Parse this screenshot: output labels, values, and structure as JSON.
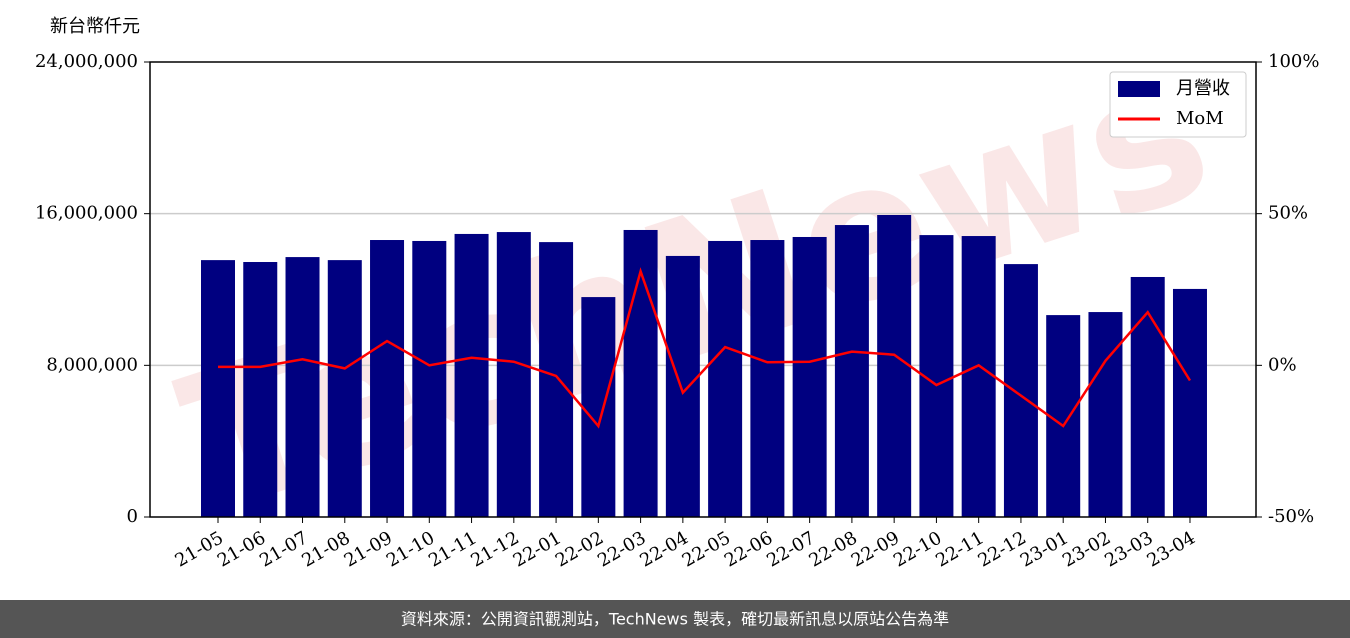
{
  "chart_data": {
    "type": "bar-line",
    "y_label": "新台幣仟元",
    "watermark": "TechNews",
    "source": "資料來源：公開資訊觀測站，TechNews 製表，確切最新訊息以原站公告為準",
    "categories": [
      "21-05",
      "21-06",
      "21-07",
      "21-08",
      "21-09",
      "21-10",
      "21-11",
      "21-12",
      "22-01",
      "22-02",
      "22-03",
      "22-04",
      "22-05",
      "22-06",
      "22-07",
      "22-08",
      "22-09",
      "22-10",
      "22-11",
      "22-12",
      "23-01",
      "23-02",
      "23-03",
      "23-04"
    ],
    "series": [
      {
        "name": "月營收",
        "type": "bar",
        "color": "#000080",
        "values": [
          13550000,
          13450000,
          13710000,
          13550000,
          14610000,
          14560000,
          14930000,
          15030000,
          14500000,
          11600000,
          15140000,
          13770000,
          14560000,
          14610000,
          14770000,
          15400000,
          15930000,
          14870000,
          14820000,
          13340000,
          10650000,
          10810000,
          12660000,
          12030000
        ]
      },
      {
        "name": "MoM",
        "type": "line",
        "axis": "y2",
        "color": "#ff0000",
        "values": [
          -0.5,
          -0.5,
          2,
          -1,
          8,
          0,
          2.5,
          1.2,
          -3.5,
          -20,
          31,
          -9,
          6,
          1,
          1.2,
          4.5,
          3.5,
          -6.5,
          0,
          -10,
          -20,
          1.5,
          17.5,
          -5
        ]
      }
    ],
    "ylim": [
      0,
      24000000
    ],
    "yticks": [
      {
        "value": 0,
        "label": "0"
      },
      {
        "value": 8000000,
        "label": "8,000,000"
      },
      {
        "value": 16000000,
        "label": "16,000,000"
      },
      {
        "value": 24000000,
        "label": "24,000,000"
      }
    ],
    "y2lim": [
      -50,
      100
    ],
    "y2ticks": [
      {
        "value": -50,
        "label": "-50%"
      },
      {
        "value": 0,
        "label": "0%"
      },
      {
        "value": 50,
        "label": "50%"
      },
      {
        "value": 100,
        "label": "100%"
      }
    ],
    "grid": true,
    "legend": "upper right"
  }
}
